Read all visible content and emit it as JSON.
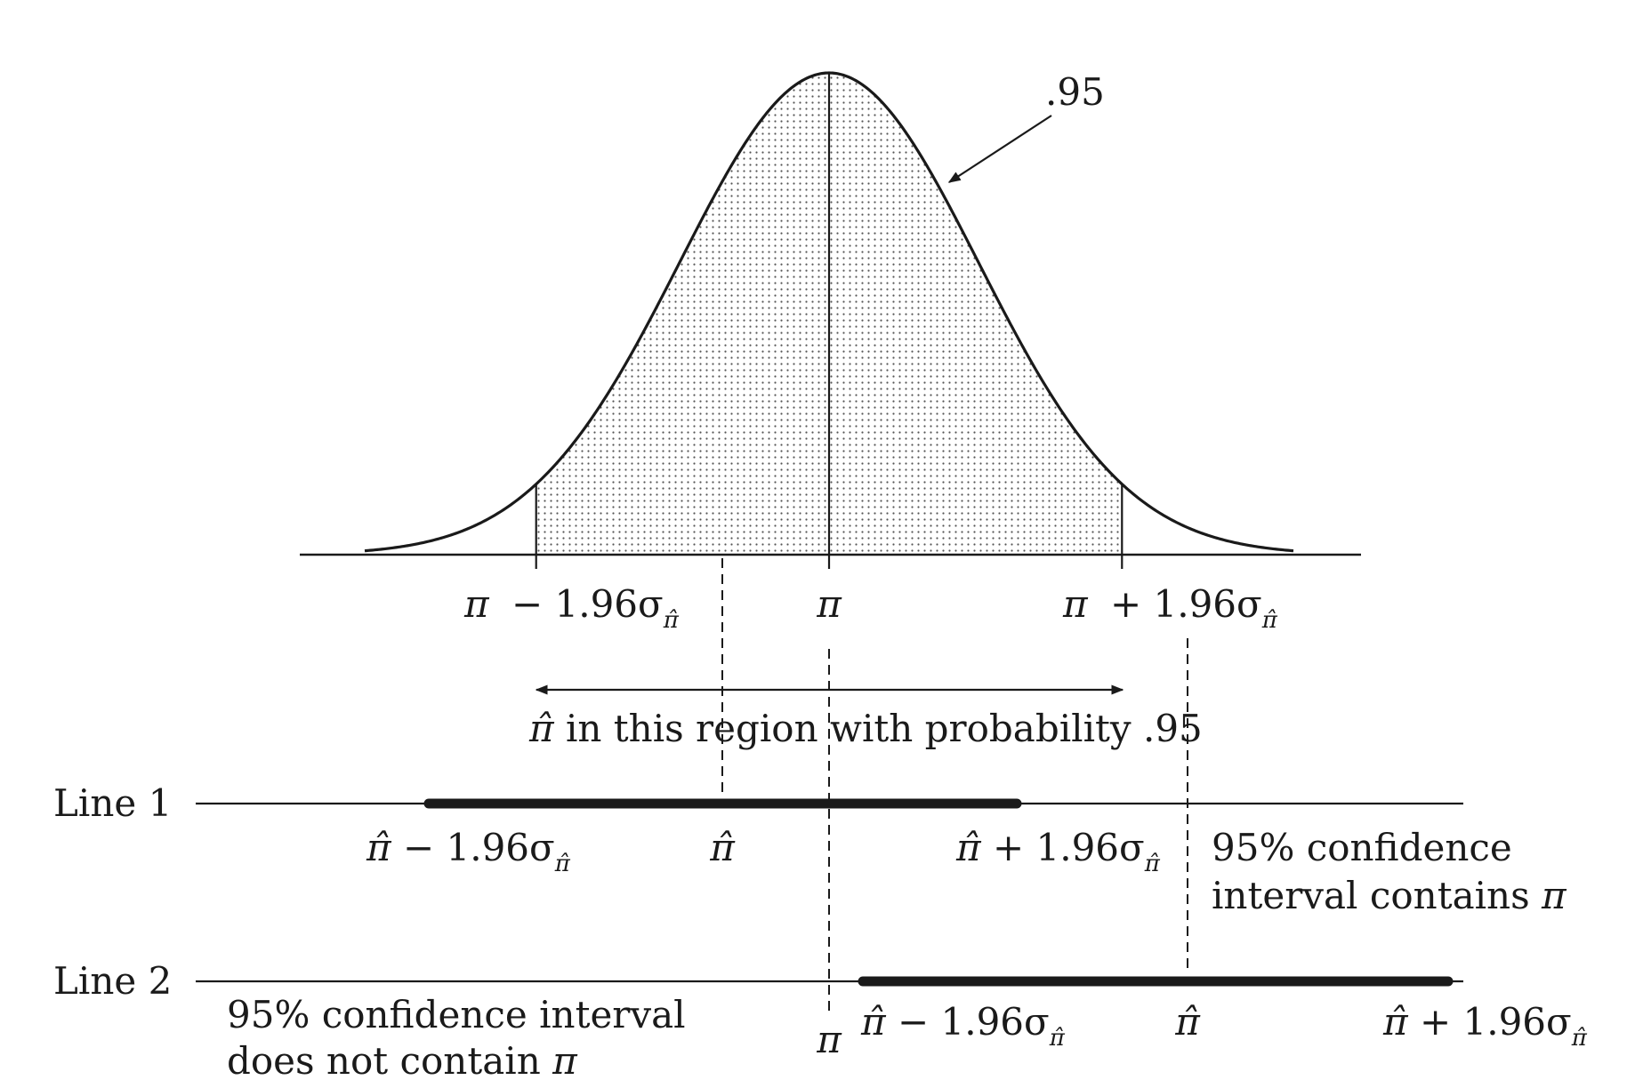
{
  "area_label": ".95",
  "axis_labels": {
    "lower_sym": "π",
    "lower_op": "− 1.96σ",
    "lower_sub": "π̂",
    "center": "π",
    "upper_sym": "π",
    "upper_op": "+ 1.96σ",
    "upper_sub": "π̂"
  },
  "region_label": {
    "sym": "π̂",
    "text": " in this region with probability .95"
  },
  "line1": {
    "name": "Line 1",
    "lower_sym": "π̂",
    "lower_op": " − 1.96σ",
    "lower_sub": "π̂",
    "point": "π̂",
    "upper_sym": "π̂",
    "upper_op": " + 1.96σ",
    "upper_sub": "π̂",
    "note_line1": "95% confidence",
    "note_line2_text": "interval contains ",
    "note_line2_sym": "π"
  },
  "line2": {
    "name": "Line 2",
    "note_line1": "95% confidence interval",
    "note_line2_text": "does not contain ",
    "note_line2_sym": "π",
    "pi": "π",
    "lower_sym": "π̂",
    "lower_op": " − 1.96σ",
    "lower_sub": "π̂",
    "point": "π̂",
    "upper_sym": "π̂",
    "upper_op": " + 1.96σ",
    "upper_sub": "π̂"
  },
  "colors": {
    "ink": "#1a1a1a",
    "dots": "#555555"
  }
}
